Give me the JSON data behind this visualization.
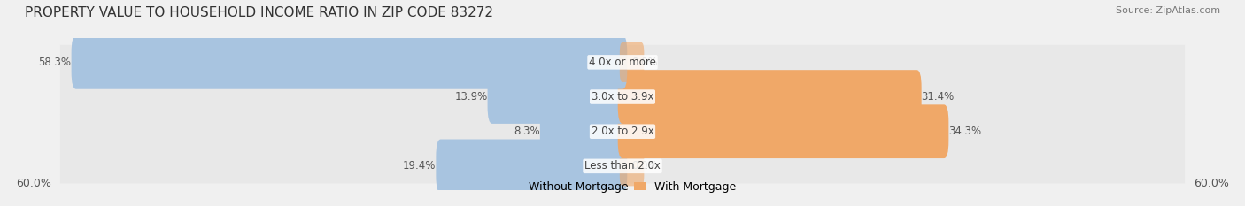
{
  "title": "PROPERTY VALUE TO HOUSEHOLD INCOME RATIO IN ZIP CODE 83272",
  "source": "Source: ZipAtlas.com",
  "categories": [
    "Less than 2.0x",
    "2.0x to 2.9x",
    "3.0x to 3.9x",
    "4.0x or more"
  ],
  "without_mortgage": [
    19.4,
    8.3,
    13.9,
    58.3
  ],
  "with_mortgage": [
    0.0,
    34.3,
    31.4,
    0.0
  ],
  "max_val": 60.0,
  "x_tick_left": "60.0%",
  "x_tick_right": "60.0%",
  "color_without": "#a8c4e0",
  "color_with": "#f0a868",
  "bg_color": "#f0f0f0",
  "bar_bg_color": "#e8e8e8",
  "title_fontsize": 11,
  "source_fontsize": 8,
  "label_fontsize": 8.5,
  "tick_fontsize": 9,
  "legend_fontsize": 9
}
